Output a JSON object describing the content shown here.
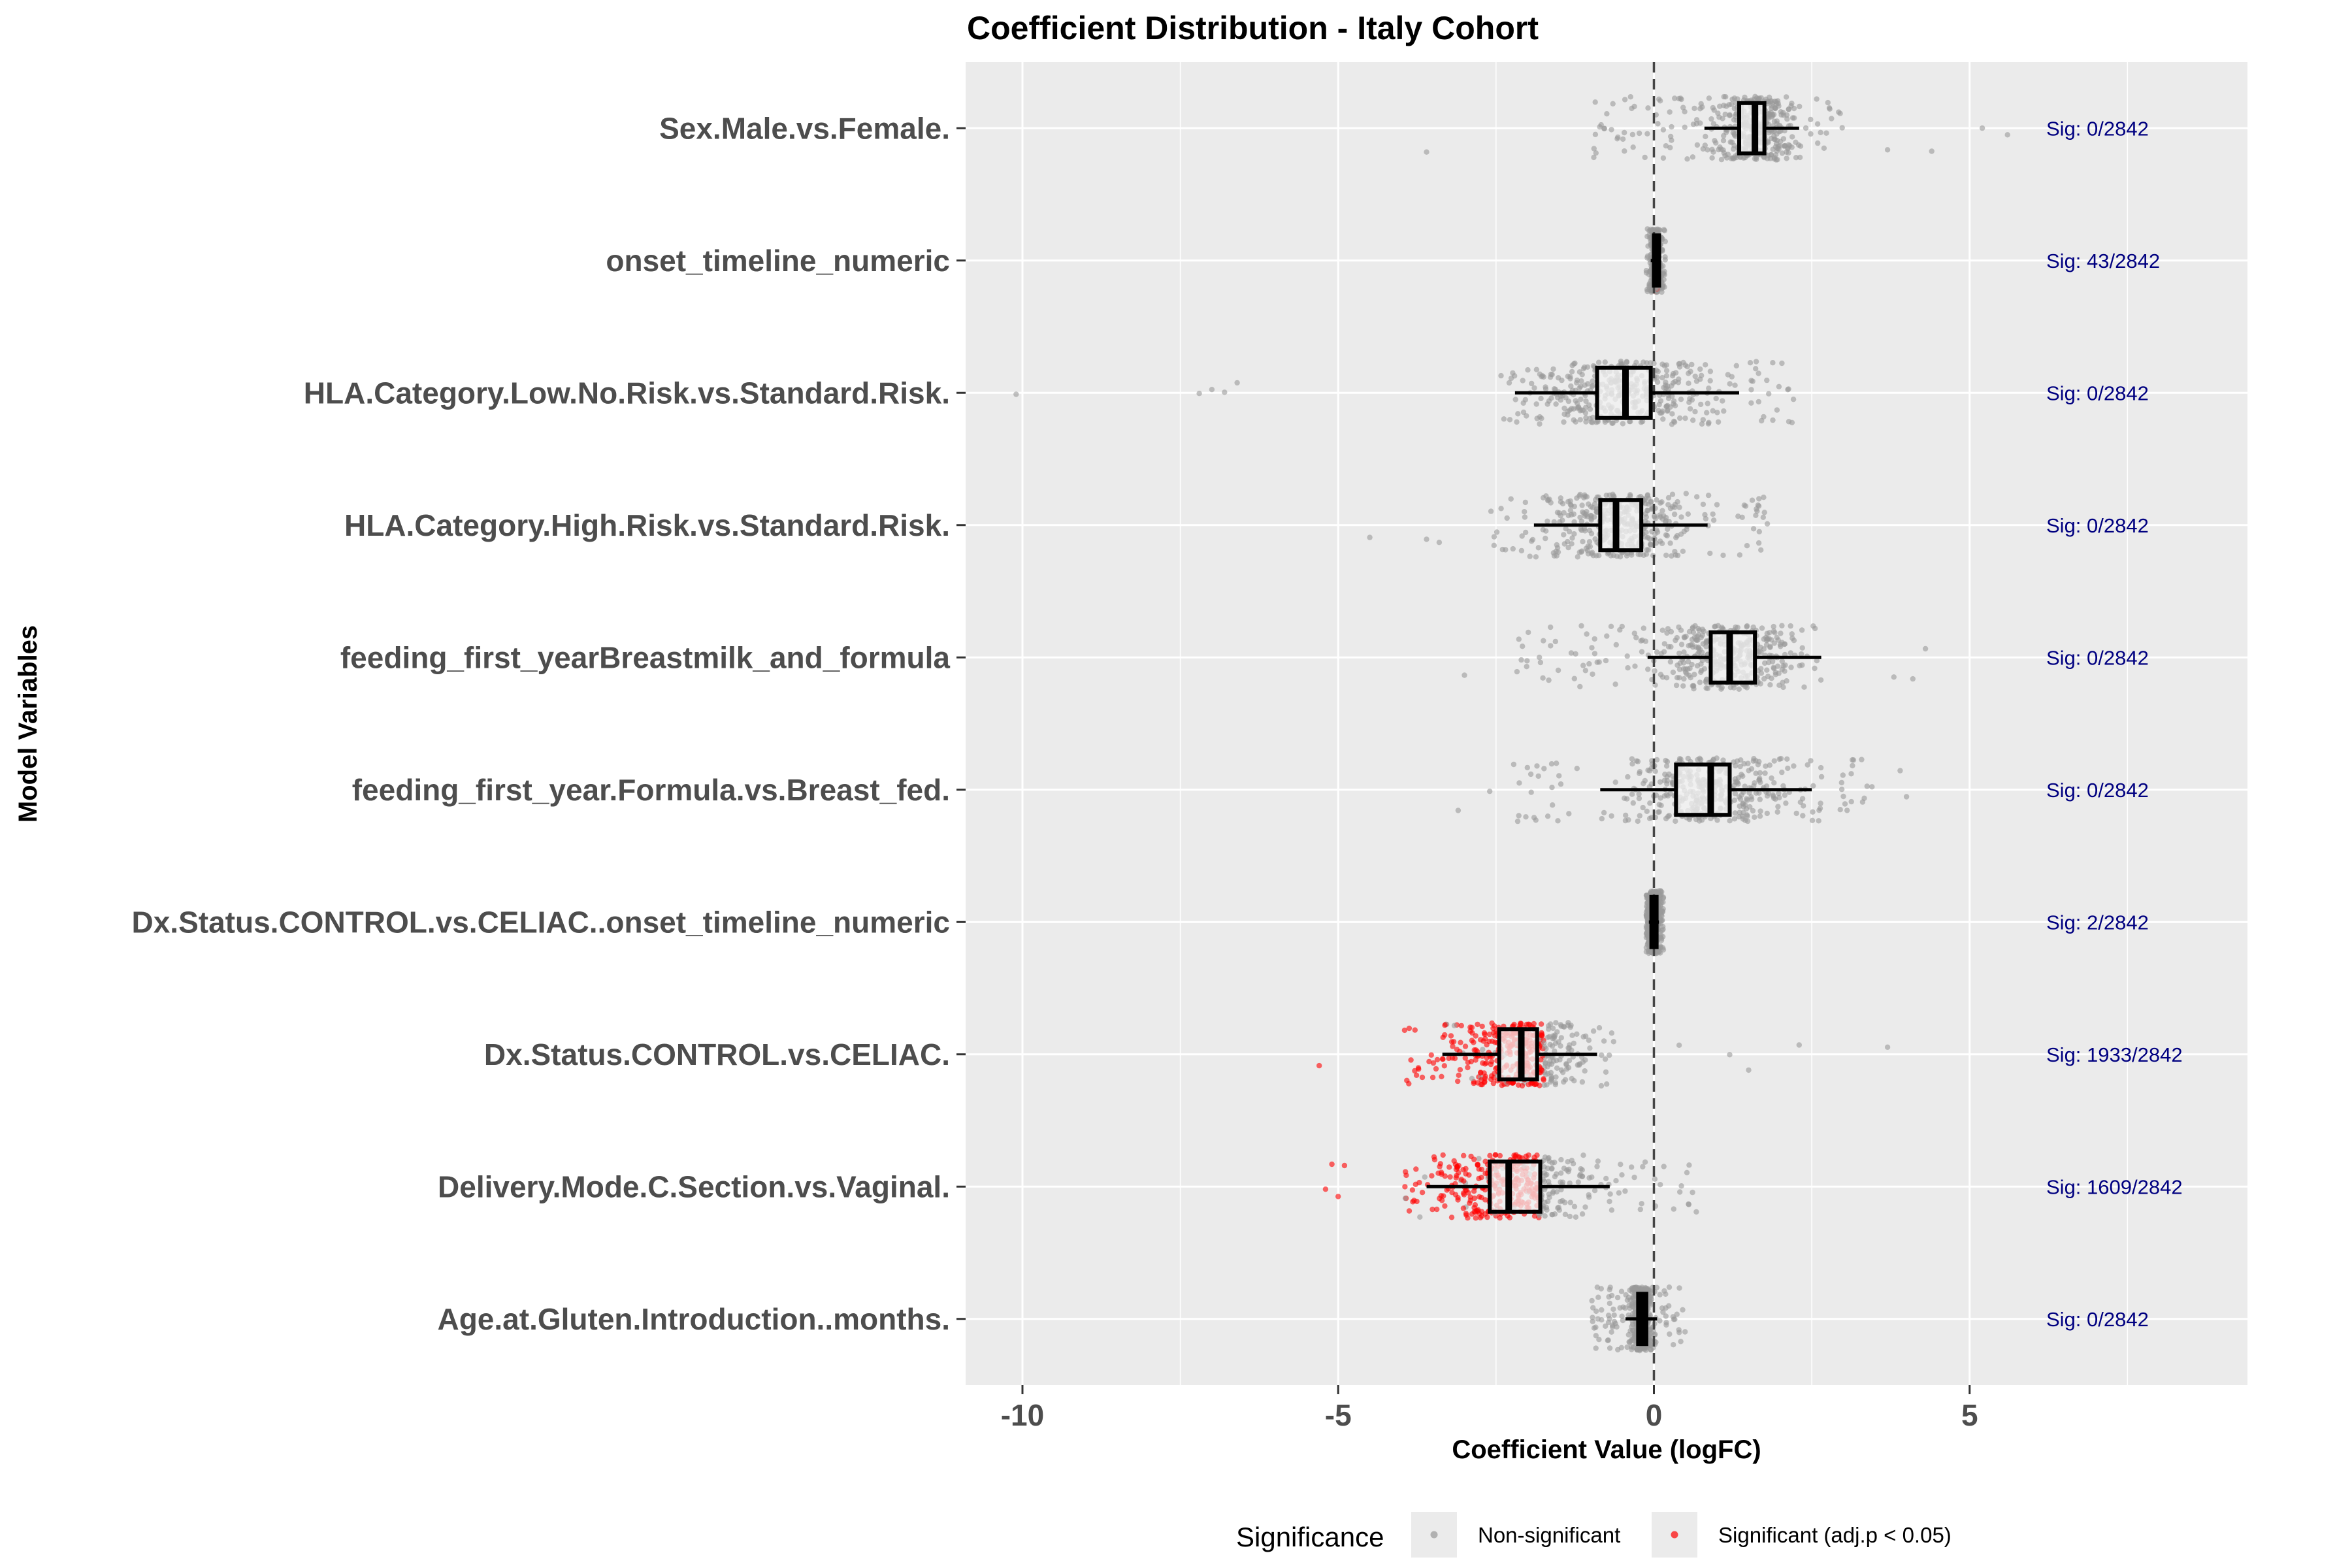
{
  "chart_data": {
    "type": "boxplot-jitter",
    "title": "Coefficient Distribution - Italy Cohort",
    "xlabel": "Coefficient Value (logFC)",
    "ylabel": "Model Variables",
    "xlim": [
      -10.9,
      9.4
    ],
    "x_ticks": [
      -10,
      -5,
      0,
      5
    ],
    "x_tick_labels": [
      "-10",
      "-5",
      "0",
      "5"
    ],
    "reference_line": 0,
    "total_n": 2842,
    "colors": {
      "panel": "#ebebeb",
      "grid": "#ffffff",
      "nonsig": "#999999",
      "sig": "#ff0000",
      "box_fill": "#f2f2f2",
      "sig_text": "#000080"
    },
    "variables": [
      {
        "name": "Sex.Male.vs.Female.",
        "q1": 1.35,
        "median": 1.6,
        "q3": 1.75,
        "wlo": 0.8,
        "whi": 2.3,
        "spread_lo": -1.0,
        "spread_hi": 3.0,
        "sig_count": 0,
        "sig_label": "Sig: 0/2842",
        "outliers": [
          -3.6,
          3.7,
          4.4,
          5.2,
          5.6
        ]
      },
      {
        "name": "onset_timeline_numeric",
        "q1": 0.0,
        "median": 0.02,
        "q3": 0.04,
        "wlo": -0.05,
        "whi": 0.1,
        "spread_lo": -0.12,
        "spread_hi": 0.18,
        "sig_count": 43,
        "sig_label": "Sig: 43/2842",
        "outliers": []
      },
      {
        "name": "HLA.Category.Low.No.Risk.vs.Standard.Risk.",
        "q1": -0.9,
        "median": -0.45,
        "q3": -0.05,
        "wlo": -2.2,
        "whi": 1.35,
        "spread_lo": -2.5,
        "spread_hi": 2.4,
        "sig_count": 0,
        "sig_label": "Sig: 0/2842",
        "outliers": [
          -10.1,
          -7.2,
          -7.0,
          -6.6,
          -6.8
        ]
      },
      {
        "name": "HLA.Category.High.Risk.vs.Standard.Risk.",
        "q1": -0.85,
        "median": -0.6,
        "q3": -0.2,
        "wlo": -1.9,
        "whi": 0.85,
        "spread_lo": -2.6,
        "spread_hi": 1.8,
        "sig_count": 0,
        "sig_label": "Sig: 0/2842",
        "outliers": [
          -4.5,
          -3.6,
          -3.4
        ]
      },
      {
        "name": "feeding_first_yearBreastmilk_and_formula",
        "q1": 0.9,
        "median": 1.2,
        "q3": 1.6,
        "wlo": -0.1,
        "whi": 2.65,
        "spread_lo": -2.2,
        "spread_hi": 2.9,
        "sig_count": 0,
        "sig_label": "Sig: 0/2842",
        "outliers": [
          -3.0,
          3.8,
          4.1,
          4.3
        ]
      },
      {
        "name": "feeding_first_year.Formula.vs.Breast_fed.",
        "q1": 0.35,
        "median": 0.9,
        "q3": 1.2,
        "wlo": -0.85,
        "whi": 2.5,
        "spread_lo": -2.3,
        "spread_hi": 3.5,
        "sig_count": 0,
        "sig_label": "Sig: 0/2842",
        "outliers": [
          -3.1,
          -2.6,
          3.9,
          4.0
        ]
      },
      {
        "name": "Dx.Status.CONTROL.vs.CELIAC..onset_timeline_numeric",
        "q1": -0.04,
        "median": 0.0,
        "q3": 0.04,
        "wlo": -0.08,
        "whi": 0.08,
        "spread_lo": -0.12,
        "spread_hi": 0.15,
        "sig_count": 2,
        "sig_label": "Sig: 2/2842",
        "outliers": []
      },
      {
        "name": "Dx.Status.CONTROL.vs.CELIAC.",
        "q1": -2.45,
        "median": -2.1,
        "q3": -1.85,
        "wlo": -3.35,
        "whi": -0.9,
        "spread_lo": -4.0,
        "spread_hi": -0.6,
        "sig_count": 1933,
        "sig_label": "Sig: 1933/2842",
        "outliers": [
          -5.3,
          0.4,
          1.2,
          1.5,
          2.3,
          3.7
        ]
      },
      {
        "name": "Delivery.Mode.C.Section.vs.Vaginal.",
        "q1": -2.6,
        "median": -2.3,
        "q3": -1.8,
        "wlo": -3.6,
        "whi": -0.7,
        "spread_lo": -4.0,
        "spread_hi": 0.7,
        "sig_count": 1609,
        "sig_label": "Sig: 1609/2842",
        "outliers": [
          -5.2,
          -5.1,
          -5.0,
          -4.9
        ]
      },
      {
        "name": "Age.at.Gluten.Introduction..months.",
        "q1": -0.25,
        "median": -0.2,
        "q3": -0.12,
        "wlo": -0.45,
        "whi": 0.05,
        "spread_lo": -1.0,
        "spread_hi": 0.5,
        "sig_count": 0,
        "sig_label": "Sig: 0/2842",
        "outliers": []
      }
    ],
    "legend": {
      "title": "Significance",
      "items": [
        {
          "label": "Non-significant",
          "color": "#999999"
        },
        {
          "label": "Significant (adj.p < 0.05)",
          "color": "#ff0000"
        }
      ]
    }
  }
}
